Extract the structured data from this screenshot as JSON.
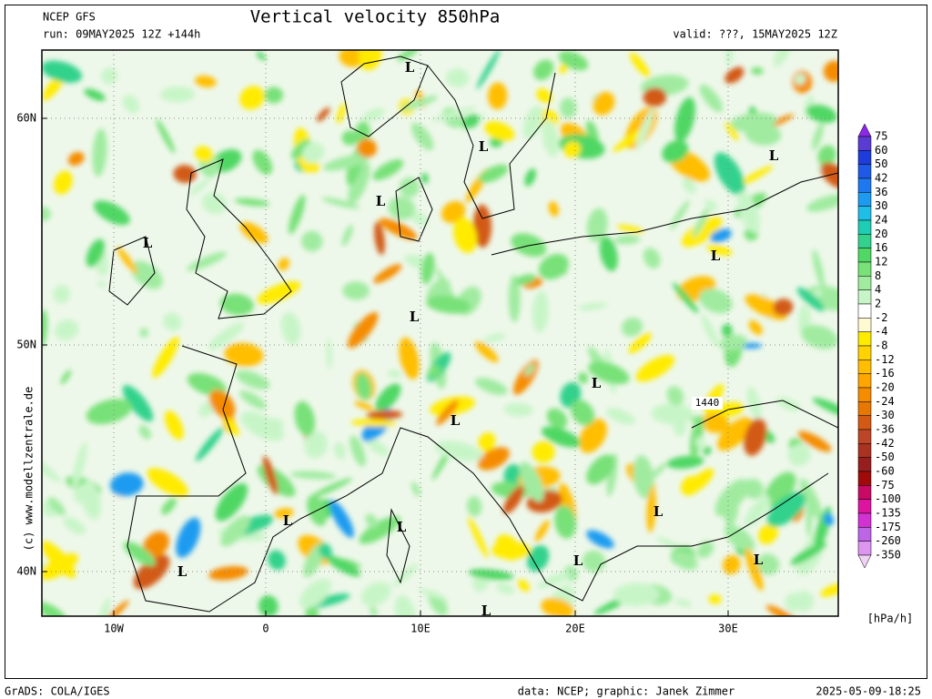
{
  "header": {
    "model": "NCEP GFS",
    "title": "Vertical velocity 850hPa",
    "run": "run: 09MAY2025 12Z +144h",
    "valid": "valid: ???, 15MAY2025 12Z"
  },
  "map": {
    "lat_labels": [
      "60N",
      "50N",
      "40N"
    ],
    "lon_labels": [
      "10W",
      "0",
      "10E",
      "20E",
      "30E"
    ],
    "lows": [
      "L",
      "L",
      "L",
      "L",
      "L",
      "L",
      "L",
      "L",
      "L",
      "L",
      "L",
      "L",
      "L",
      "L",
      "L",
      "L"
    ],
    "contour_label": "1440",
    "credit": "(c) www.modellzentrale.de"
  },
  "colorbar": {
    "unit": "[hPa/h]",
    "labels": [
      75,
      60,
      50,
      42,
      36,
      30,
      24,
      20,
      16,
      12,
      8,
      4,
      2,
      -2,
      -4,
      -8,
      -12,
      -16,
      -20,
      -24,
      -30,
      -36,
      -42,
      -50,
      -60,
      -75,
      -100,
      -135,
      -175,
      -260,
      -350
    ],
    "colors": [
      "#8c28e6",
      "#5a3cd2",
      "#1e3cdc",
      "#1e5ae6",
      "#1e78f0",
      "#1e9bf0",
      "#1ebee6",
      "#1ecdb4",
      "#32d28c",
      "#50d764",
      "#78e178",
      "#a0eba0",
      "#c8f5c8",
      "#ffffff",
      "#fffad2",
      "#ffeb00",
      "#ffd200",
      "#ffbe00",
      "#ffa500",
      "#f58c00",
      "#e67800",
      "#d25a14",
      "#be4628",
      "#aa3220",
      "#961e1e",
      "#a00a0a",
      "#c80a64",
      "#dc14a0",
      "#d232d2",
      "#be64e6",
      "#dc96f0",
      "#f0d2f5"
    ]
  },
  "footer": {
    "software": "GrADS: COLA/IGES",
    "source": "data: NCEP; graphic: Janek Zimmer",
    "timestamp": "2025-05-09-18:25"
  }
}
